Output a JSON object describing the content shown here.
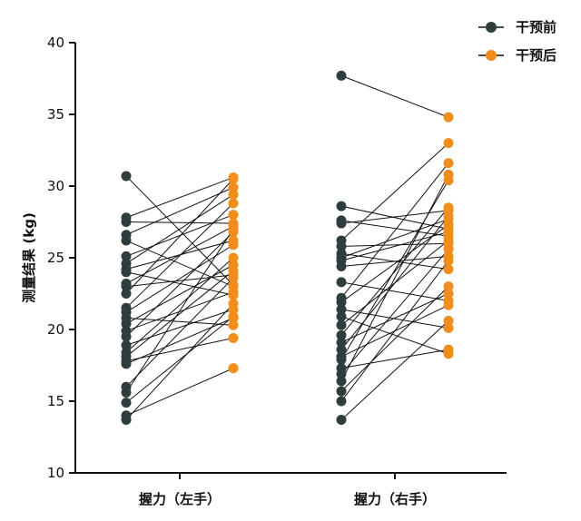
{
  "chart_data": {
    "type": "scatter",
    "ylabel": "测量结果 (kg)",
    "ylim": [
      10,
      40
    ],
    "yticks": [
      10,
      15,
      20,
      25,
      30,
      35,
      40
    ],
    "grid": false,
    "legend_position": "top-right",
    "colors": {
      "before": "#2f3d3f",
      "after": "#f28c1a",
      "line": "#111111"
    },
    "series": [
      {
        "name": "干预前"
      },
      {
        "name": "干预后"
      }
    ],
    "groups": [
      {
        "label": "握力（左手）",
        "before": [
          30.7,
          27.8,
          27.5,
          26.6,
          26.2,
          25.1,
          24.6,
          24.2,
          24.0,
          23.2,
          23.0,
          22.5,
          21.5,
          21.2,
          20.8,
          20.4,
          19.9,
          19.5,
          18.9,
          18.4,
          18.1,
          17.8,
          17.6,
          16.0,
          15.6,
          14.9,
          14.0,
          13.7
        ],
        "after": [
          23.1,
          30.6,
          27.4,
          29.9,
          23.0,
          28.0,
          29.4,
          26.2,
          22.4,
          27.2,
          23.8,
          30.5,
          28.8,
          25.9,
          20.3,
          24.5,
          22.6,
          26.8,
          21.4,
          25.0,
          24.1,
          19.4,
          20.8,
          23.6,
          27.0,
          20.9,
          17.3,
          21.8
        ]
      },
      {
        "label": "握力（右手）",
        "before": [
          37.7,
          28.6,
          27.6,
          27.4,
          26.2,
          25.8,
          25.3,
          25.0,
          24.8,
          24.4,
          23.3,
          22.2,
          21.9,
          21.4,
          20.9,
          20.3,
          19.6,
          19.1,
          18.6,
          18.1,
          17.9,
          17.3,
          16.9,
          16.4,
          15.7,
          15.0,
          13.7
        ],
        "after": [
          34.8,
          27.0,
          26.5,
          28.3,
          33.0,
          26.0,
          24.2,
          27.7,
          26.8,
          25.1,
          22.0,
          31.6,
          27.3,
          20.1,
          18.3,
          26.2,
          28.5,
          22.5,
          27.9,
          21.7,
          30.4,
          18.6,
          25.6,
          30.8,
          23.0,
          24.8,
          20.6
        ]
      }
    ]
  }
}
